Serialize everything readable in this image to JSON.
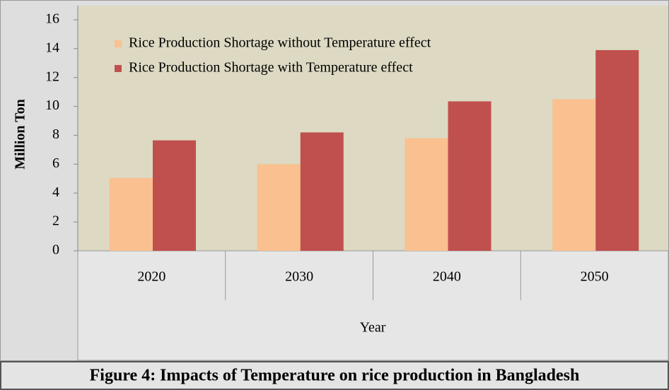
{
  "chart_data": {
    "type": "bar",
    "y_label": "Million Ton",
    "x_label": "Year",
    "caption": "Figure 4: Impacts of Temperature on rice production in Bangladesh",
    "categories": [
      "2020",
      "2030",
      "2040",
      "2050"
    ],
    "series": [
      {
        "name": "Rice Production Shortage without Temperature effect",
        "color": "#fac090",
        "values": [
          5.05,
          6.0,
          7.8,
          10.5
        ]
      },
      {
        "name": "Rice Production Shortage with Temperature effect",
        "color": "#c0504d",
        "values": [
          7.65,
          8.2,
          10.35,
          13.9
        ]
      }
    ],
    "ylim": [
      0,
      16
    ],
    "yticks": [
      0,
      2,
      4,
      6,
      8,
      10,
      12,
      14,
      16
    ],
    "grid": false,
    "legend": "top-left"
  }
}
